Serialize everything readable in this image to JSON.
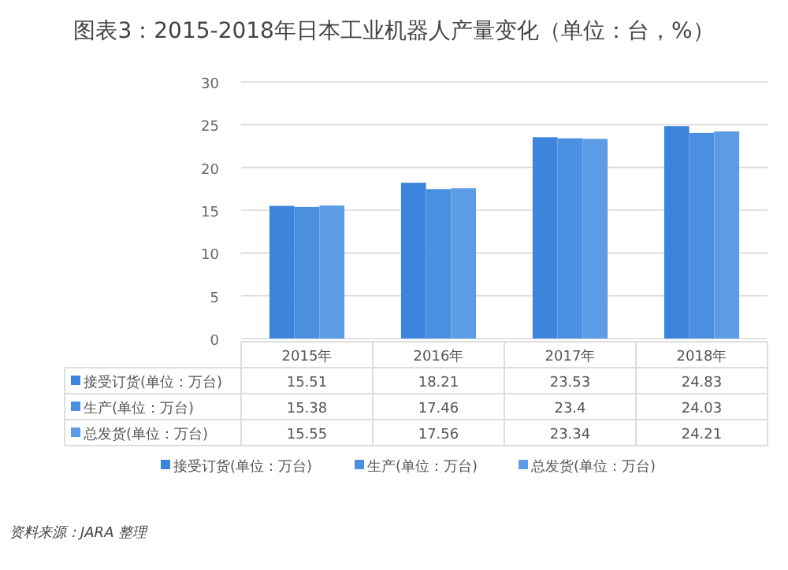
{
  "chart_data": {
    "type": "bar",
    "title": "图表3：2015-2018年日本工业机器人产量变化（单位：台，%）",
    "categories": [
      "2015年",
      "2016年",
      "2017年",
      "2018年"
    ],
    "series": [
      {
        "name": "接受订货(单位：万台)",
        "color": "#3d84dc",
        "values": [
          15.51,
          18.21,
          23.53,
          24.83
        ]
      },
      {
        "name": "生产(单位：万台)",
        "color": "#4b8fe0",
        "values": [
          15.38,
          17.46,
          23.4,
          24.03
        ]
      },
      {
        "name": "总发货(单位：万台)",
        "color": "#5c9be5",
        "values": [
          15.55,
          17.56,
          23.34,
          24.21
        ]
      }
    ],
    "ylim": [
      0,
      30
    ],
    "yticks": [
      0,
      5,
      10,
      15,
      20,
      25,
      30
    ],
    "grid": "y",
    "legend": "bottom",
    "data_labels": true,
    "annotations": [
      "资料来源：JARA 整理"
    ]
  }
}
